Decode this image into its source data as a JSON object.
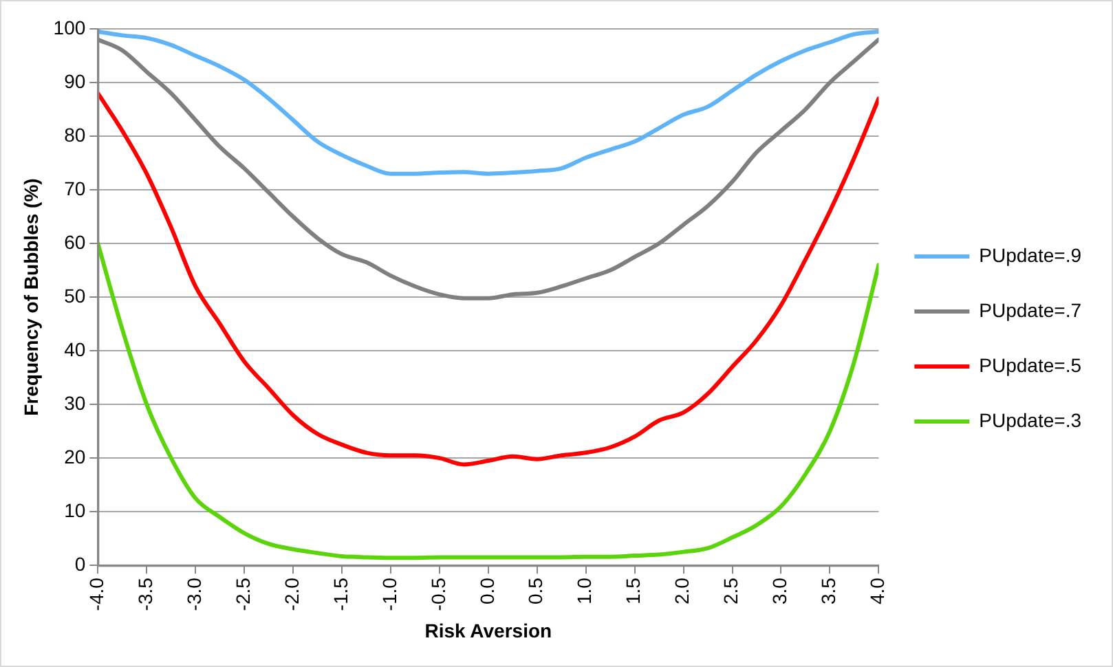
{
  "chart_data": {
    "type": "line",
    "xlabel": "Risk Aversion",
    "ylabel": "Frequency of Bubbles (%)",
    "x": [
      -4,
      -3.75,
      -3.5,
      -3.25,
      -3,
      -2.75,
      -2.5,
      -2.25,
      -2,
      -1.75,
      -1.5,
      -1.25,
      -1,
      -0.75,
      -0.5,
      -0.25,
      0,
      0.25,
      0.5,
      0.75,
      1,
      1.25,
      1.5,
      1.75,
      2,
      2.25,
      2.5,
      2.75,
      3,
      3.25,
      3.5,
      3.75,
      4
    ],
    "series": [
      {
        "name": "PUpdate=.9",
        "color": "#5fb4f8",
        "values": [
          99.5,
          98.8,
          98.3,
          97,
          95,
          93,
          90.5,
          87,
          83,
          79,
          76.5,
          74.5,
          73,
          73,
          73.2,
          73.3,
          73,
          73.2,
          73.5,
          74,
          76,
          77.5,
          79,
          81.5,
          84,
          85.5,
          88.5,
          91.5,
          94,
          96,
          97.5,
          99,
          99.5
        ]
      },
      {
        "name": "PUpdate=.7",
        "color": "#7f7f7f",
        "values": [
          98,
          96,
          92,
          88,
          83,
          78,
          74,
          69.5,
          65,
          61,
          58,
          56.5,
          54,
          52,
          50.5,
          49.8,
          49.8,
          50.5,
          50.8,
          52,
          53.5,
          55,
          57.5,
          60,
          63.5,
          67,
          71.5,
          77,
          81,
          85,
          90,
          94,
          98
        ]
      },
      {
        "name": "PUpdate=.5",
        "color": "#ff0000",
        "values": [
          88,
          81,
          73,
          63,
          52,
          45,
          38,
          33,
          28,
          24.5,
          22.5,
          21,
          20.5,
          20.5,
          20,
          18.8,
          19.5,
          20.3,
          19.8,
          20.5,
          21,
          22,
          24,
          27,
          28.5,
          32,
          37,
          42,
          48.5,
          57,
          66,
          76,
          87
        ]
      },
      {
        "name": "PUpdate=.3",
        "color": "#5cd40c",
        "values": [
          60,
          44,
          30,
          20,
          12.5,
          9,
          6,
          4,
          3,
          2.3,
          1.7,
          1.5,
          1.4,
          1.4,
          1.5,
          1.5,
          1.5,
          1.5,
          1.5,
          1.5,
          1.6,
          1.6,
          1.8,
          2,
          2.5,
          3.2,
          5.2,
          7.5,
          11,
          17,
          25,
          38,
          56
        ]
      }
    ],
    "xlim": [
      -4,
      4
    ],
    "xticks": [
      {
        "value": -4,
        "label": "-4.0"
      },
      {
        "value": -3.5,
        "label": "-3.5"
      },
      {
        "value": -3,
        "label": "-3.0"
      },
      {
        "value": -2.5,
        "label": "-2.5"
      },
      {
        "value": -2,
        "label": "-2.0"
      },
      {
        "value": -1.5,
        "label": "-1.5"
      },
      {
        "value": -1,
        "label": "-1.0"
      },
      {
        "value": -0.5,
        "label": "-0.5"
      },
      {
        "value": 0,
        "label": "0.0"
      },
      {
        "value": 0.5,
        "label": "0.5"
      },
      {
        "value": 1,
        "label": "1.0"
      },
      {
        "value": 1.5,
        "label": "1.5"
      },
      {
        "value": 2,
        "label": "2.0"
      },
      {
        "value": 2.5,
        "label": "2.5"
      },
      {
        "value": 3,
        "label": "3.0"
      },
      {
        "value": 3.5,
        "label": "3.5"
      },
      {
        "value": 4,
        "label": "4.0"
      }
    ],
    "ylim": [
      0,
      100
    ],
    "yticks": [
      0,
      10,
      20,
      30,
      40,
      50,
      60,
      70,
      80,
      90,
      100
    ],
    "grid": "y",
    "legend": "right",
    "marker": "none",
    "line_style": "solid"
  }
}
